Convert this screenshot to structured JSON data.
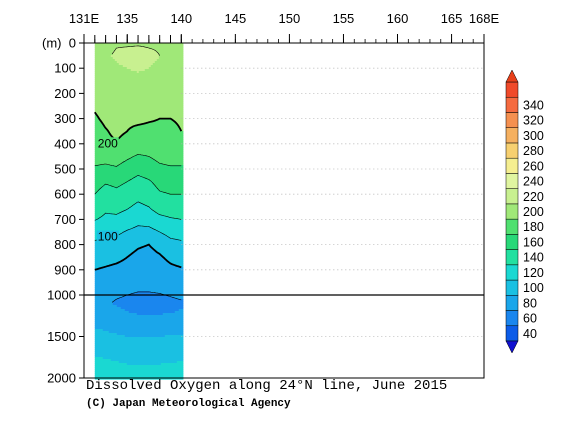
{
  "chart_data": {
    "type": "heatmap",
    "title": "Dissolved Oxygen along 24°N line, June 2015",
    "credit": "(C) Japan Meteorological Agency",
    "depth_unit_label": "(m)",
    "x_axis": {
      "tick_labels": [
        "131E",
        "135",
        "140",
        "145",
        "150",
        "155",
        "160",
        "165",
        "168E"
      ],
      "tick_values": [
        131,
        135,
        140,
        145,
        150,
        155,
        160,
        165,
        168
      ],
      "range": [
        131,
        168
      ]
    },
    "y_axis": {
      "upper_segment": {
        "tick_labels": [
          "0",
          "100",
          "200",
          "300",
          "400",
          "500",
          "600",
          "700",
          "800",
          "900",
          "1000"
        ],
        "range": [
          0,
          1000
        ]
      },
      "lower_segment": {
        "tick_labels": [
          "1500",
          "2000"
        ],
        "range": [
          1000,
          2000
        ]
      }
    },
    "data_extent_lon": [
      132,
      140
    ],
    "station_lons": [
      132,
      133,
      134,
      135,
      136,
      137,
      138,
      139,
      140
    ],
    "contour_labels": [
      {
        "text": "200",
        "lon": 133.2,
        "depth": 410
      },
      {
        "text": "100",
        "lon": 133.2,
        "depth": 780
      }
    ],
    "colorbar": {
      "labels": [
        "40",
        "60",
        "80",
        "100",
        "120",
        "140",
        "160",
        "180",
        "200",
        "220",
        "240",
        "260",
        "280",
        "300",
        "320",
        "340"
      ],
      "colors": [
        "#0c5ce8",
        "#1a86ee",
        "#1aa6ea",
        "#1ac0e2",
        "#1ad8d2",
        "#22e0a0",
        "#28d878",
        "#50e070",
        "#a0e878",
        "#c8f090",
        "#e0f5a0",
        "#f5ee90",
        "#f7d070",
        "#f5b060",
        "#f59050",
        "#f56b40",
        "#f04a2a"
      ],
      "under_color": "#1010d0",
      "over_color": "#e8401a"
    },
    "depths": [
      0,
      20,
      50,
      100,
      150,
      200,
      250,
      300,
      350,
      400,
      450,
      500,
      550,
      600,
      650,
      700,
      750,
      800,
      850,
      900,
      950,
      1000,
      1100,
      1200,
      1300,
      1400,
      1500,
      1600,
      1700,
      1800,
      1900,
      2000
    ],
    "values": [
      [
        212,
        212,
        214,
        214,
        215,
        214,
        213,
        213,
        212
      ],
      [
        214,
        216,
        220,
        222,
        224,
        220,
        218,
        216,
        214
      ],
      [
        216,
        218,
        222,
        226,
        232,
        226,
        220,
        218,
        214
      ],
      [
        214,
        216,
        218,
        220,
        222,
        220,
        216,
        214,
        212
      ],
      [
        212,
        214,
        214,
        216,
        216,
        214,
        212,
        211,
        210
      ],
      [
        211,
        211,
        212,
        212,
        213,
        212,
        210,
        210,
        208
      ],
      [
        202,
        207,
        209,
        209,
        210,
        208,
        208,
        207,
        205
      ],
      [
        198,
        203,
        205,
        204,
        205,
        202,
        200,
        200,
        201
      ],
      [
        194,
        199,
        203,
        200,
        195,
        195,
        196,
        198,
        200
      ],
      [
        195,
        197,
        199,
        195,
        190,
        190,
        193,
        195,
        196
      ],
      [
        186,
        186,
        188,
        183,
        178,
        180,
        185,
        186,
        186
      ],
      [
        178,
        176,
        178,
        172,
        166,
        170,
        176,
        178,
        178
      ],
      [
        168,
        162,
        164,
        160,
        154,
        158,
        166,
        168,
        170
      ],
      [
        160,
        152,
        156,
        152,
        146,
        150,
        158,
        160,
        160
      ],
      [
        152,
        144,
        146,
        142,
        136,
        140,
        150,
        152,
        152
      ],
      [
        141,
        136,
        136,
        132,
        126,
        128,
        134,
        138,
        140
      ],
      [
        128,
        126,
        124,
        118,
        114,
        114,
        120,
        126,
        128
      ],
      [
        116,
        114,
        112,
        106,
        102,
        100,
        106,
        114,
        116
      ],
      [
        108,
        106,
        104,
        100,
        96,
        94,
        98,
        104,
        108
      ],
      [
        100,
        98,
        96,
        94,
        92,
        90,
        92,
        96,
        98
      ],
      [
        94,
        92,
        90,
        88,
        86,
        86,
        87,
        89,
        90
      ],
      [
        90,
        85,
        82,
        80,
        78,
        78,
        79,
        81,
        83
      ],
      [
        86,
        82,
        78,
        76,
        74,
        74,
        75,
        76,
        78
      ],
      [
        90,
        86,
        84,
        80,
        78,
        77,
        78,
        79,
        81
      ],
      [
        94,
        92,
        90,
        86,
        84,
        83,
        84,
        85,
        86
      ],
      [
        100,
        98,
        96,
        94,
        92,
        92,
        93,
        94,
        95
      ],
      [
        106,
        104,
        102,
        100,
        99,
        99,
        100,
        101,
        102
      ],
      [
        112,
        110,
        108,
        106,
        105,
        105,
        106,
        107,
        108
      ],
      [
        118,
        116,
        114,
        112,
        111,
        111,
        112,
        113,
        114
      ],
      [
        124,
        122,
        120,
        118,
        117,
        117,
        118,
        119,
        120
      ],
      [
        130,
        128,
        126,
        124,
        123,
        123,
        124,
        125,
        126
      ],
      [
        134,
        132,
        130,
        128,
        127,
        127,
        128,
        129,
        130
      ]
    ]
  }
}
